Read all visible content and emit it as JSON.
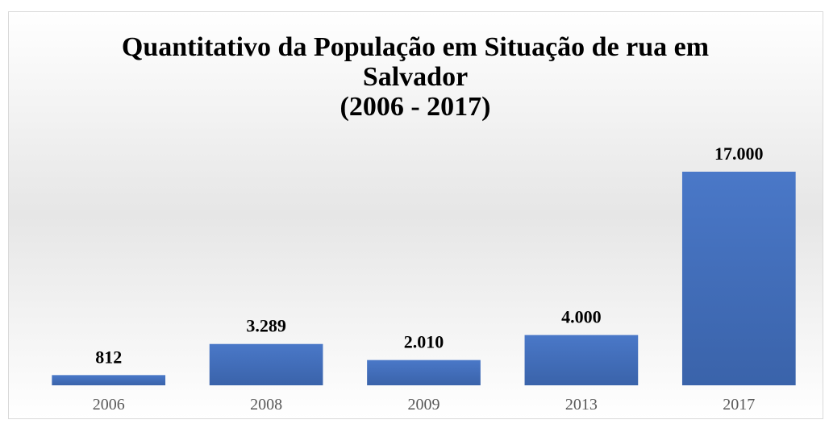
{
  "chart_data": {
    "type": "bar",
    "title": "Quantitativo da População em Situação de rua em\nSalvador\n(2006 - 2017)",
    "categories": [
      "2006",
      "2008",
      "2009",
      "2013",
      "2017"
    ],
    "values": [
      812,
      3289,
      2010,
      4000,
      17000
    ],
    "value_labels": [
      "812",
      "3.289",
      "2.010",
      "4.000",
      "17.000"
    ],
    "color": "#4472c4"
  }
}
